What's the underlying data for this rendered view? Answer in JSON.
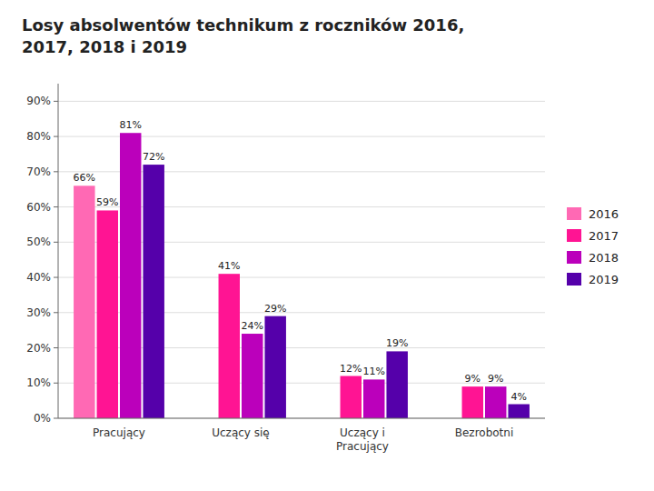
{
  "chart_data": {
    "type": "bar",
    "title": "Losy absolwentów technikum z roczników 2016,\n2017, 2018 i 2019",
    "categories": [
      "Pracujący",
      "Uczący się",
      "Uczący i\nPracujący",
      "Bezrobotni"
    ],
    "series": [
      {
        "name": "2016",
        "color": "#FF69B4",
        "values": [
          66,
          0,
          0,
          0
        ],
        "value_labels": [
          "66%",
          null,
          null,
          null
        ]
      },
      {
        "name": "2017",
        "color": "#FF1493",
        "values": [
          59,
          41,
          12,
          9
        ],
        "value_labels": [
          "59%",
          "41%",
          "12%",
          "9%"
        ]
      },
      {
        "name": "2018",
        "color": "#BB00BB",
        "values": [
          81,
          24,
          11,
          9
        ],
        "value_labels": [
          "81%",
          "24%",
          "11%",
          "9%"
        ]
      },
      {
        "name": "2019",
        "color": "#5500AA",
        "values": [
          72,
          29,
          19,
          4
        ],
        "value_labels": [
          "72%",
          "29%",
          "19%",
          "4%"
        ]
      }
    ],
    "ylim": [
      0,
      95
    ],
    "yticks": [
      {
        "value": 0,
        "label": "0%"
      },
      {
        "value": 10,
        "label": "10%"
      },
      {
        "value": 20,
        "label": "20%"
      },
      {
        "value": 30,
        "label": "30%"
      },
      {
        "value": 40,
        "label": "40%"
      },
      {
        "value": 50,
        "label": "50%"
      },
      {
        "value": 60,
        "label": "60%"
      },
      {
        "value": 70,
        "label": "70%"
      },
      {
        "value": 80,
        "label": "80%"
      },
      {
        "value": 90,
        "label": "90%"
      }
    ],
    "grid": true,
    "legend": "right",
    "data_labels": true
  }
}
